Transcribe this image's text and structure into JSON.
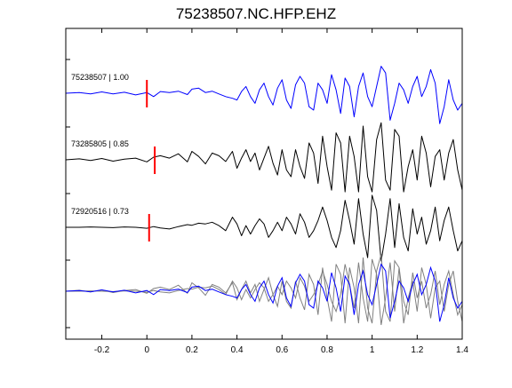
{
  "chart_data": {
    "type": "line",
    "title": "75238507.NC.HFP.EHZ",
    "xlim": [
      -0.36,
      1.4
    ],
    "x_ticks": [
      -0.2,
      0,
      0.2,
      0.4,
      0.6,
      0.8,
      1,
      1.2,
      1.4
    ],
    "x_tick_labels": [
      "-0.2",
      "0",
      "0.2",
      "0.4",
      "0.6",
      "0.8",
      "1",
      "1.2",
      "1.4"
    ],
    "xlabel": "",
    "ylabel": "",
    "grid": false,
    "colors": {
      "primary_trace": "#0000ff",
      "other_trace": "#000000",
      "overlay_other": "#808080",
      "pick_marker": "#ff0000"
    },
    "traces": [
      {
        "name": "75238507 | 1.00",
        "row": 1,
        "color": "#0000ff",
        "pick_time": 0.0,
        "t": [
          -0.36,
          -0.3,
          -0.25,
          -0.2,
          -0.15,
          -0.1,
          -0.05,
          0,
          0.03,
          0.06,
          0.1,
          0.14,
          0.18,
          0.2,
          0.23,
          0.26,
          0.29,
          0.32,
          0.35,
          0.38,
          0.4,
          0.42,
          0.44,
          0.46,
          0.48,
          0.5,
          0.52,
          0.54,
          0.56,
          0.58,
          0.6,
          0.62,
          0.64,
          0.66,
          0.68,
          0.7,
          0.72,
          0.74,
          0.76,
          0.78,
          0.8,
          0.82,
          0.84,
          0.86,
          0.88,
          0.9,
          0.92,
          0.94,
          0.96,
          0.98,
          1,
          1.02,
          1.04,
          1.06,
          1.08,
          1.1,
          1.12,
          1.14,
          1.16,
          1.18,
          1.2,
          1.22,
          1.24,
          1.26,
          1.28,
          1.3,
          1.32,
          1.34,
          1.36,
          1.38,
          1.4
        ],
        "y": [
          0,
          0.02,
          -0.02,
          0.04,
          -0.02,
          0.03,
          -0.05,
          0.02,
          -0.1,
          0.05,
          0.02,
          0.06,
          -0.04,
          0.12,
          0.15,
          0.02,
          0.06,
          -0.02,
          -0.1,
          -0.15,
          -0.2,
          0.05,
          0.2,
          -0.1,
          -0.3,
          0.1,
          0.3,
          -0.1,
          -0.35,
          0.15,
          0.4,
          -0.2,
          -0.45,
          0.25,
          0.5,
          0.3,
          -0.4,
          -0.5,
          0.3,
          0.1,
          -0.3,
          0.55,
          0.1,
          -0.6,
          0.45,
          0.2,
          -0.7,
          0.2,
          0.6,
          -0.1,
          -0.4,
          0.2,
          0.8,
          0.6,
          -0.8,
          -0.3,
          0.3,
          0.1,
          -0.3,
          0.2,
          0.5,
          -0.1,
          0.2,
          0.7,
          0.3,
          -0.9,
          -0.4,
          0.4,
          -0.2,
          -0.5,
          -0.3
        ]
      },
      {
        "name": "73285805 | 0.85",
        "row": 2,
        "color": "#000000",
        "pick_time": 0.035,
        "t": [
          -0.36,
          -0.3,
          -0.25,
          -0.2,
          -0.15,
          -0.1,
          -0.05,
          0,
          0.03,
          0.06,
          0.1,
          0.14,
          0.18,
          0.2,
          0.23,
          0.26,
          0.29,
          0.32,
          0.35,
          0.38,
          0.4,
          0.42,
          0.44,
          0.46,
          0.48,
          0.5,
          0.52,
          0.54,
          0.56,
          0.58,
          0.6,
          0.62,
          0.64,
          0.66,
          0.68,
          0.7,
          0.72,
          0.74,
          0.76,
          0.78,
          0.8,
          0.82,
          0.84,
          0.86,
          0.88,
          0.9,
          0.92,
          0.94,
          0.96,
          0.98,
          1,
          1.02,
          1.04,
          1.06,
          1.08,
          1.1,
          1.12,
          1.14,
          1.16,
          1.18,
          1.2,
          1.22,
          1.24,
          1.26,
          1.28,
          1.3,
          1.32,
          1.34,
          1.36,
          1.38,
          1.4
        ],
        "y": [
          0,
          0.03,
          -0.02,
          0.04,
          -0.04,
          0.02,
          0.05,
          -0.06,
          0.08,
          0.12,
          0.05,
          0.18,
          -0.06,
          0.25,
          0.1,
          -0.12,
          0.2,
          0.12,
          -0.05,
          0.25,
          -0.25,
          0.05,
          0.3,
          -0.05,
          0.2,
          -0.3,
          0.05,
          0.4,
          -0.1,
          -0.45,
          0.3,
          -0.3,
          -0.5,
          0.3,
          -0.2,
          -0.55,
          0.5,
          0.2,
          -0.7,
          0.7,
          -0.2,
          -0.9,
          0.8,
          0.5,
          -0.95,
          0.7,
          0.1,
          -0.95,
          1.0,
          -0.5,
          -0.95,
          0.6,
          1.1,
          -0.6,
          -0.9,
          0.9,
          0.7,
          -0.95,
          -0.2,
          0.3,
          -0.6,
          0.7,
          0.2,
          -0.8,
          0.1,
          0.3,
          -0.6,
          0.2,
          0.6,
          -0.3,
          -0.9
        ]
      },
      {
        "name": "72920516 | 0.73",
        "row": 3,
        "color": "#000000",
        "pick_time": 0.01,
        "t": [
          -0.36,
          -0.3,
          -0.25,
          -0.2,
          -0.15,
          -0.1,
          -0.05,
          0,
          0.03,
          0.06,
          0.1,
          0.14,
          0.18,
          0.2,
          0.23,
          0.26,
          0.29,
          0.32,
          0.35,
          0.38,
          0.4,
          0.42,
          0.44,
          0.46,
          0.48,
          0.5,
          0.52,
          0.54,
          0.56,
          0.58,
          0.6,
          0.62,
          0.64,
          0.66,
          0.68,
          0.7,
          0.72,
          0.74,
          0.76,
          0.78,
          0.8,
          0.82,
          0.84,
          0.86,
          0.88,
          0.9,
          0.92,
          0.94,
          0.96,
          0.98,
          1,
          1.02,
          1.04,
          1.06,
          1.08,
          1.1,
          1.12,
          1.14,
          1.16,
          1.18,
          1.2,
          1.22,
          1.24,
          1.26,
          1.28,
          1.3,
          1.32,
          1.34,
          1.36,
          1.38,
          1.4
        ],
        "y": [
          0,
          0,
          0.01,
          0,
          -0.01,
          0.01,
          0,
          -0.03,
          0.02,
          -0.02,
          -0.05,
          0.02,
          0.08,
          0.06,
          0.12,
          0.1,
          0.15,
          0.05,
          -0.1,
          0.3,
          0.1,
          -0.25,
          0.05,
          -0.2,
          0.05,
          0.25,
          0.1,
          -0.3,
          -0.1,
          0.15,
          -0.1,
          0.3,
          0.1,
          -0.2,
          0.4,
          0.15,
          -0.3,
          -0.1,
          0.2,
          0.6,
          0.2,
          -0.3,
          -0.6,
          -0.1,
          0.8,
          0.2,
          -0.5,
          0.85,
          -0.2,
          -0.9,
          0.95,
          0.5,
          -1.0,
          -0.2,
          0.85,
          -0.6,
          0.7,
          -0.3,
          -0.7,
          0.55,
          -0.2,
          0.3,
          -0.5,
          -0.1,
          0.6,
          -0.4,
          0.2,
          0.6,
          -0.1,
          -0.7,
          -0.4
        ]
      }
    ],
    "overlay_row": 4
  }
}
